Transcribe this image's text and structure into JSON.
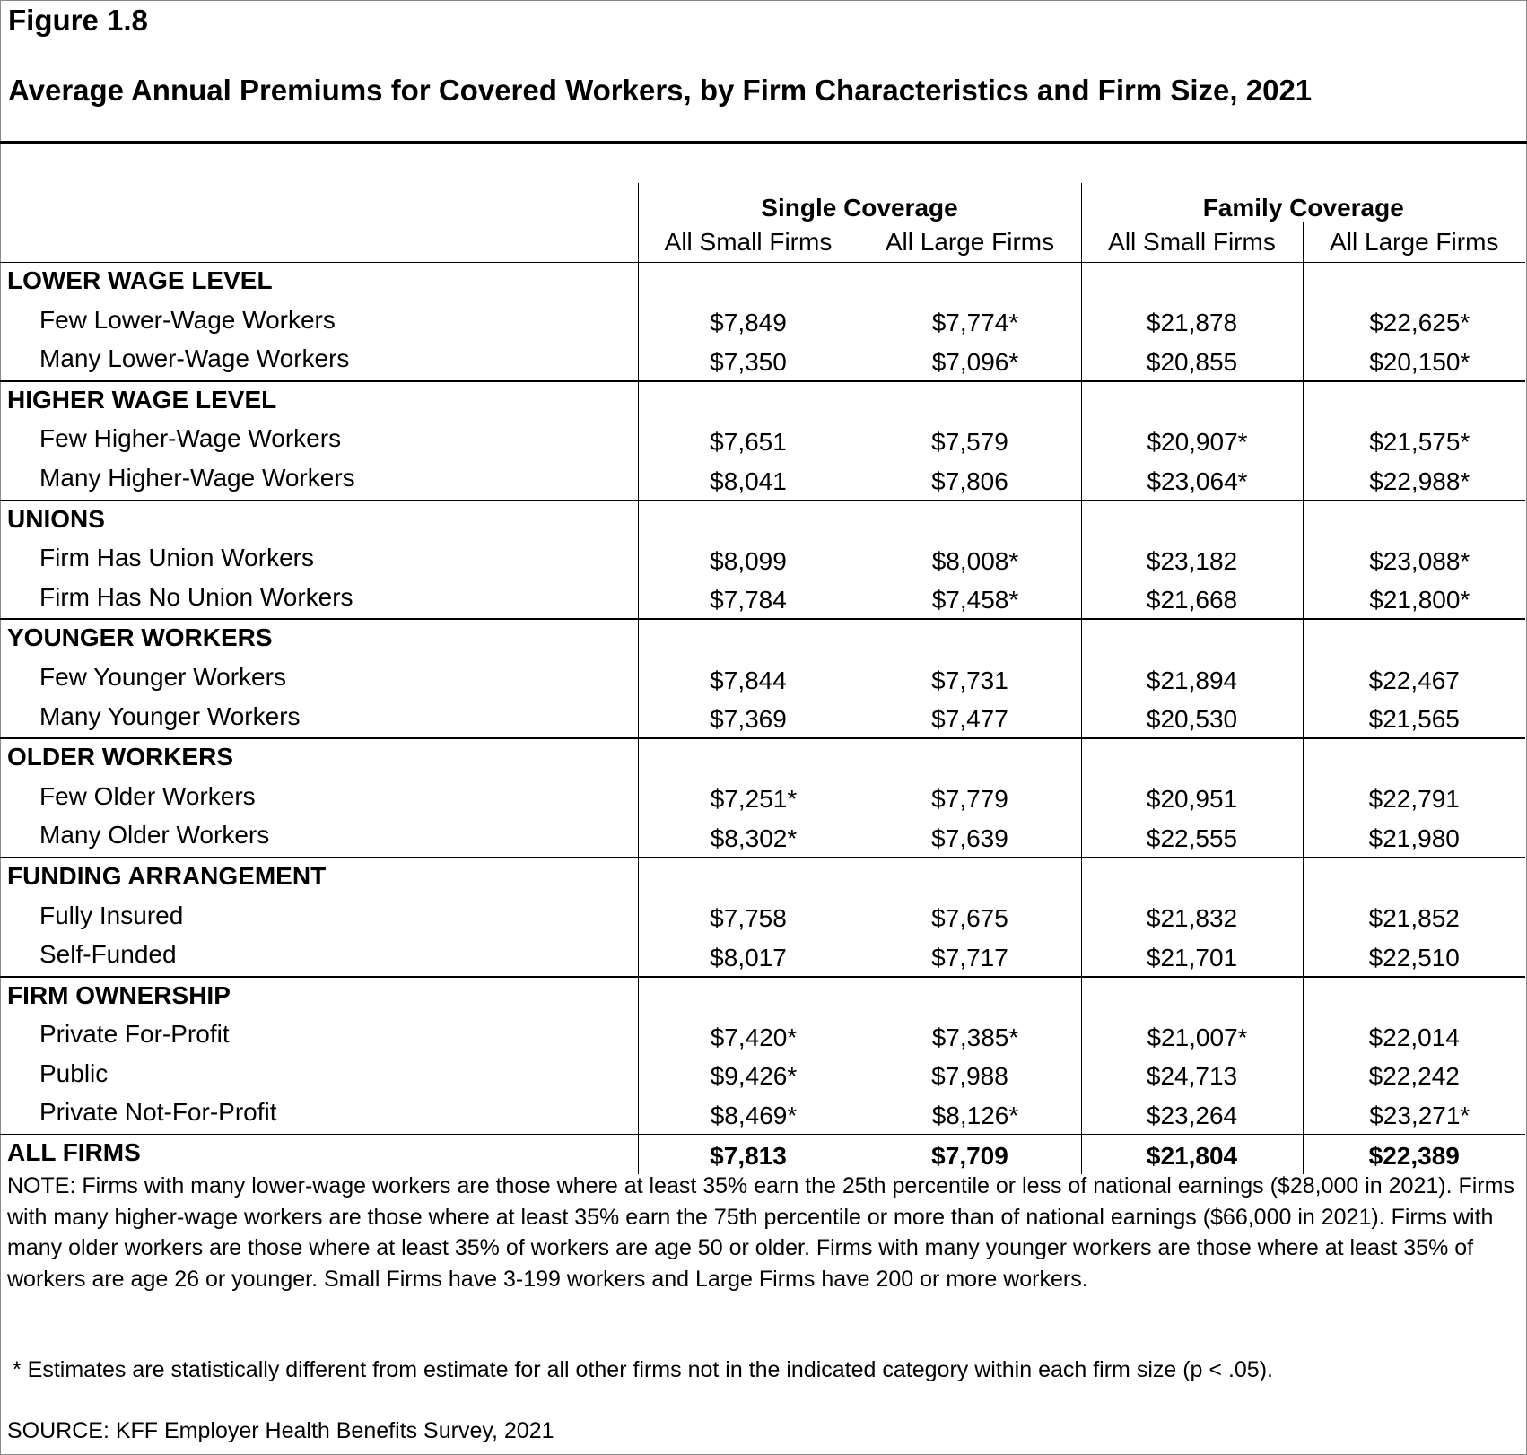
{
  "figure_number": "Figure 1.8",
  "title": "Average Annual Premiums for Covered Workers, by Firm Characteristics and Firm Size, 2021",
  "header": {
    "groups": [
      "Single Coverage",
      "Family Coverage"
    ],
    "subcolumns": [
      "All Small Firms",
      "All Large Firms",
      "All Small Firms",
      "All Large Firms"
    ]
  },
  "sections": [
    {
      "label": "LOWER WAGE LEVEL",
      "rows": [
        {
          "label": "Few Lower-Wage Workers",
          "values": [
            "$7,849",
            "$7,774*",
            "$21,878",
            "$22,625*"
          ]
        },
        {
          "label": "Many Lower-Wage Workers",
          "values": [
            "$7,350",
            "$7,096*",
            "$20,855",
            "$20,150*"
          ]
        }
      ]
    },
    {
      "label": "HIGHER WAGE LEVEL",
      "rows": [
        {
          "label": "Few Higher-Wage Workers",
          "values": [
            "$7,651",
            "$7,579",
            "$20,907*",
            "$21,575*"
          ]
        },
        {
          "label": "Many Higher-Wage Workers",
          "values": [
            "$8,041",
            "$7,806",
            "$23,064*",
            "$22,988*"
          ]
        }
      ]
    },
    {
      "label": "UNIONS",
      "rows": [
        {
          "label": "Firm Has Union Workers",
          "values": [
            "$8,099",
            "$8,008*",
            "$23,182",
            "$23,088*"
          ]
        },
        {
          "label": "Firm Has No Union Workers",
          "values": [
            "$7,784",
            "$7,458*",
            "$21,668",
            "$21,800*"
          ]
        }
      ]
    },
    {
      "label": "YOUNGER WORKERS",
      "rows": [
        {
          "label": "Few Younger Workers",
          "values": [
            "$7,844",
            "$7,731",
            "$21,894",
            "$22,467"
          ]
        },
        {
          "label": "Many Younger Workers",
          "values": [
            "$7,369",
            "$7,477",
            "$20,530",
            "$21,565"
          ]
        }
      ]
    },
    {
      "label": "OLDER WORKERS",
      "rows": [
        {
          "label": "Few Older Workers",
          "values": [
            "$7,251*",
            "$7,779",
            "$20,951",
            "$22,791"
          ]
        },
        {
          "label": "Many Older Workers",
          "values": [
            "$8,302*",
            "$7,639",
            "$22,555",
            "$21,980"
          ]
        }
      ]
    },
    {
      "label": "FUNDING ARRANGEMENT",
      "rows": [
        {
          "label": "Fully Insured",
          "values": [
            "$7,758",
            "$7,675",
            "$21,832",
            "$21,852"
          ]
        },
        {
          "label": "Self-Funded",
          "values": [
            "$8,017",
            "$7,717",
            "$21,701",
            "$22,510"
          ]
        }
      ]
    },
    {
      "label": "FIRM OWNERSHIP",
      "rows": [
        {
          "label": "Private For-Profit",
          "values": [
            "$7,420*",
            "$7,385*",
            "$21,007*",
            "$22,014"
          ]
        },
        {
          "label": "Public",
          "values": [
            "$9,426*",
            "$7,988",
            "$24,713",
            "$22,242"
          ]
        },
        {
          "label": "Private Not-For-Profit",
          "values": [
            "$8,469*",
            "$8,126*",
            "$23,264",
            "$23,271*"
          ]
        }
      ]
    }
  ],
  "total": {
    "label": "ALL FIRMS",
    "values": [
      "$7,813",
      "$7,709",
      "$21,804",
      "$22,389"
    ]
  },
  "note": "NOTE: Firms with many lower-wage workers are those where at least 35% earn the 25th percentile or less of national earnings ($28,000 in 2021). Firms with many higher-wage workers are those where at least 35% earn the 75th percentile or more than of national earnings ($66,000 in 2021). Firms with many older workers are those where at least 35% of workers are age 50 or older. Firms with many younger workers are those where at least 35% of workers are age 26 or younger. Small Firms have 3-199 workers and Large Firms have 200 or more workers.",
  "significance_note": "* Estimates are statistically different from estimate for all other firms not in the indicated category within each firm size (p < .05).",
  "source": "SOURCE: KFF Employer Health Benefits Survey, 2021"
}
